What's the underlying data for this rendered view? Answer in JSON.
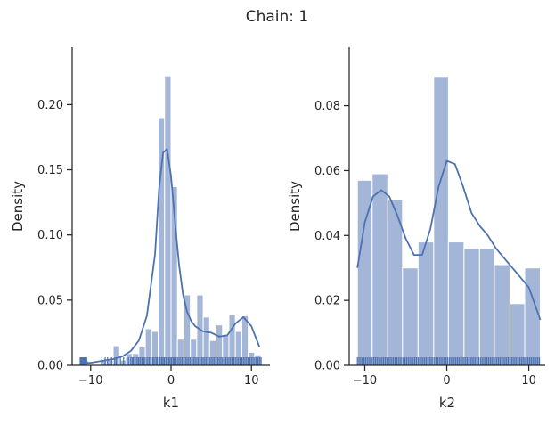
{
  "figure": {
    "suptitle": "Chain: 1"
  },
  "colors": {
    "bar_fill": "#a4b6d8",
    "bar_stroke": "#ffffff",
    "kde": "#4c72b0",
    "rug": "#4c72b0",
    "axis": "#262626"
  },
  "chart_data": [
    {
      "type": "bar",
      "panel": "left",
      "xlabel": "k1",
      "ylabel": "Density",
      "xlim": [
        -12.3,
        12.3
      ],
      "ylim": [
        0,
        0.244
      ],
      "xticks": [
        -10,
        0,
        10
      ],
      "yticks": [
        0.0,
        0.05,
        0.1,
        0.15,
        0.2
      ],
      "ytick_labels": [
        "0.00",
        "0.05",
        "0.10",
        "0.15",
        "0.20"
      ],
      "bins": [
        {
          "x0": -11.1,
          "x1": -10.3,
          "density": 0.004
        },
        {
          "x0": -10.3,
          "x1": -9.6,
          "density": 0.0
        },
        {
          "x0": -9.6,
          "x1": -8.8,
          "density": 0.0
        },
        {
          "x0": -8.8,
          "x1": -8.0,
          "density": 0.004
        },
        {
          "x0": -8.0,
          "x1": -7.2,
          "density": 0.004
        },
        {
          "x0": -7.2,
          "x1": -6.4,
          "density": 0.015
        },
        {
          "x0": -6.4,
          "x1": -5.6,
          "density": 0.004
        },
        {
          "x0": -5.6,
          "x1": -4.8,
          "density": 0.009
        },
        {
          "x0": -4.8,
          "x1": -4.0,
          "density": 0.009
        },
        {
          "x0": -4.0,
          "x1": -3.2,
          "density": 0.014
        },
        {
          "x0": -3.2,
          "x1": -2.4,
          "density": 0.028
        },
        {
          "x0": -2.4,
          "x1": -1.6,
          "density": 0.026
        },
        {
          "x0": -1.6,
          "x1": -0.8,
          "density": 0.19
        },
        {
          "x0": -0.8,
          "x1": 0.0,
          "density": 0.222
        },
        {
          "x0": 0.0,
          "x1": 0.8,
          "density": 0.137
        },
        {
          "x0": 0.8,
          "x1": 1.6,
          "density": 0.02
        },
        {
          "x0": 1.6,
          "x1": 2.4,
          "density": 0.054
        },
        {
          "x0": 2.4,
          "x1": 3.2,
          "density": 0.02
        },
        {
          "x0": 3.2,
          "x1": 4.0,
          "density": 0.054
        },
        {
          "x0": 4.0,
          "x1": 4.8,
          "density": 0.037
        },
        {
          "x0": 4.8,
          "x1": 5.6,
          "density": 0.019
        },
        {
          "x0": 5.6,
          "x1": 6.4,
          "density": 0.031
        },
        {
          "x0": 6.4,
          "x1": 7.2,
          "density": 0.023
        },
        {
          "x0": 7.2,
          "x1": 8.0,
          "density": 0.039
        },
        {
          "x0": 8.0,
          "x1": 8.8,
          "density": 0.026
        },
        {
          "x0": 8.8,
          "x1": 9.6,
          "density": 0.038
        },
        {
          "x0": 9.6,
          "x1": 10.4,
          "density": 0.01
        },
        {
          "x0": 10.4,
          "x1": 11.2,
          "density": 0.008
        }
      ],
      "kde": {
        "x": [
          -11,
          -10,
          -9,
          -8,
          -7,
          -6,
          -5,
          -4,
          -3,
          -2,
          -1.5,
          -1,
          -0.5,
          0,
          0.5,
          1,
          1.5,
          2,
          2.5,
          3,
          4,
          5,
          6,
          7,
          8,
          9,
          10,
          11
        ],
        "y": [
          0.002,
          0.002,
          0.003,
          0.004,
          0.005,
          0.007,
          0.011,
          0.019,
          0.038,
          0.085,
          0.135,
          0.163,
          0.166,
          0.145,
          0.11,
          0.077,
          0.054,
          0.041,
          0.034,
          0.03,
          0.026,
          0.025,
          0.022,
          0.023,
          0.032,
          0.037,
          0.03,
          0.014
        ]
      },
      "rug_x": [
        -11.3,
        -11.2,
        -11.1,
        -11.0,
        -10.9,
        -10.8,
        -10.7,
        -10.6,
        -10.5,
        -8.6,
        -8.2,
        -7.9,
        -7.4,
        -7.0,
        -6.8,
        -6.3,
        -5.9,
        -5.5,
        -5.3,
        -5.0,
        -4.8,
        -4.7,
        -4.5,
        -4.3,
        -4.1,
        -4.0,
        -3.8,
        -3.6,
        -3.4,
        -3.3,
        -3.1,
        -2.9,
        -2.7,
        -2.5,
        -2.3,
        -2.2,
        -2.0,
        -1.8,
        -1.7,
        -1.5,
        -1.4,
        -1.2,
        -1.1,
        -0.9,
        -0.8,
        -0.6,
        -0.5,
        -0.3,
        -0.2,
        0.0,
        0.1,
        0.3,
        0.4,
        0.6,
        0.8,
        1.0,
        1.2,
        1.4,
        1.6,
        1.8,
        2.0,
        2.2,
        2.4,
        2.6,
        2.8,
        3.0,
        3.2,
        3.4,
        3.6,
        3.8,
        4.0,
        4.2,
        4.4,
        4.6,
        4.8,
        5.0,
        5.2,
        5.4,
        5.6,
        5.8,
        6.0,
        6.2,
        6.4,
        6.6,
        6.8,
        7.0,
        7.2,
        7.4,
        7.6,
        7.8,
        8.0,
        8.2,
        8.4,
        8.6,
        8.8,
        9.0,
        9.2,
        9.4,
        9.6,
        9.8,
        10.0,
        10.2,
        10.4,
        10.6,
        10.8,
        11.0,
        11.2
      ]
    },
    {
      "type": "bar",
      "panel": "right",
      "xlabel": "k2",
      "ylabel": "Density",
      "xlim": [
        -11.9,
        12.0
      ],
      "ylim": [
        0,
        0.098
      ],
      "xticks": [
        -10,
        0,
        10
      ],
      "yticks": [
        0.0,
        0.02,
        0.04,
        0.06,
        0.08
      ],
      "ytick_labels": [
        "0.00",
        "0.02",
        "0.04",
        "0.06",
        "0.08"
      ],
      "bins": [
        {
          "x0": -10.9,
          "x1": -9.1,
          "density": 0.057
        },
        {
          "x0": -9.1,
          "x1": -7.2,
          "density": 0.059
        },
        {
          "x0": -7.2,
          "x1": -5.4,
          "density": 0.051
        },
        {
          "x0": -5.4,
          "x1": -3.5,
          "density": 0.03
        },
        {
          "x0": -3.5,
          "x1": -1.6,
          "density": 0.038
        },
        {
          "x0": -1.6,
          "x1": 0.2,
          "density": 0.089
        },
        {
          "x0": 0.2,
          "x1": 2.1,
          "density": 0.038
        },
        {
          "x0": 2.1,
          "x1": 4.0,
          "density": 0.036
        },
        {
          "x0": 4.0,
          "x1": 5.8,
          "density": 0.036
        },
        {
          "x0": 5.8,
          "x1": 7.7,
          "density": 0.031
        },
        {
          "x0": 7.7,
          "x1": 9.5,
          "density": 0.019
        },
        {
          "x0": 9.5,
          "x1": 11.4,
          "density": 0.03
        }
      ],
      "kde": {
        "x": [
          -10.9,
          -10,
          -9,
          -8,
          -7,
          -6,
          -5,
          -4,
          -3,
          -2,
          -1,
          0,
          1,
          2,
          3,
          4,
          5,
          6,
          7,
          8,
          9,
          10,
          11.4
        ],
        "y": [
          0.03,
          0.044,
          0.052,
          0.054,
          0.052,
          0.046,
          0.039,
          0.034,
          0.034,
          0.042,
          0.055,
          0.063,
          0.062,
          0.055,
          0.047,
          0.043,
          0.04,
          0.036,
          0.033,
          0.03,
          0.027,
          0.024,
          0.014
        ]
      },
      "rug_x": [
        -10.9,
        -10.7,
        -10.5,
        -10.3,
        -10.1,
        -9.9,
        -9.7,
        -9.5,
        -9.3,
        -9.1,
        -8.9,
        -8.7,
        -8.5,
        -8.3,
        -8.1,
        -7.9,
        -7.7,
        -7.5,
        -7.3,
        -7.1,
        -6.9,
        -6.7,
        -6.5,
        -6.3,
        -6.1,
        -5.9,
        -5.7,
        -5.5,
        -5.3,
        -5.1,
        -4.9,
        -4.7,
        -4.5,
        -4.3,
        -4.1,
        -3.9,
        -3.7,
        -3.5,
        -3.3,
        -3.1,
        -2.9,
        -2.7,
        -2.5,
        -2.3,
        -2.1,
        -1.9,
        -1.7,
        -1.5,
        -1.3,
        -1.1,
        -0.9,
        -0.7,
        -0.5,
        -0.3,
        -0.1,
        0.1,
        0.3,
        0.5,
        0.7,
        0.9,
        1.1,
        1.3,
        1.5,
        1.7,
        1.9,
        2.1,
        2.3,
        2.5,
        2.7,
        2.9,
        3.1,
        3.3,
        3.5,
        3.7,
        3.9,
        4.1,
        4.3,
        4.5,
        4.7,
        4.9,
        5.1,
        5.3,
        5.5,
        5.7,
        5.9,
        6.1,
        6.3,
        6.5,
        6.7,
        6.9,
        7.1,
        7.3,
        7.5,
        7.7,
        7.9,
        8.1,
        8.3,
        8.5,
        8.7,
        8.9,
        9.1,
        9.3,
        9.5,
        9.7,
        9.9,
        10.1,
        10.3,
        10.5,
        10.7,
        10.9,
        11.1,
        11.3
      ]
    }
  ]
}
